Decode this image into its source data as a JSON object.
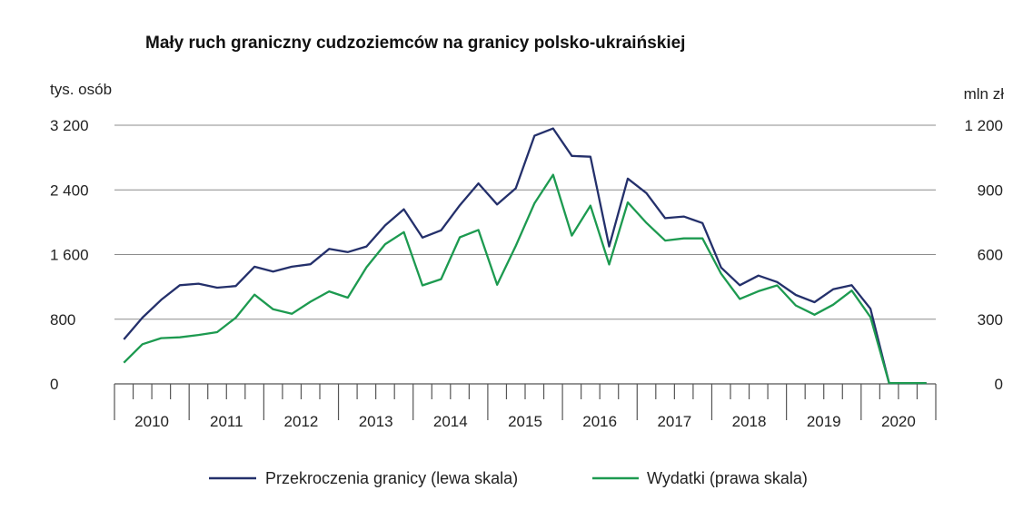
{
  "chart_data": {
    "type": "line",
    "title": "Mały ruch graniczny cudzoziemców na granicy polsko-ukraińskiej",
    "ylabel_left": "tys. osób",
    "ylabel_right": "mln zł",
    "ylim_left": [
      0,
      3200
    ],
    "ylim_right": [
      0,
      1200
    ],
    "yticks_left": [
      "0",
      "800",
      "1 600",
      "2 400",
      "3 200"
    ],
    "yticks_right": [
      "0",
      "300",
      "600",
      "900",
      "1 200"
    ],
    "grid": true,
    "legend_position": "bottom",
    "years": [
      "2010",
      "2011",
      "2012",
      "2013",
      "2014",
      "2015",
      "2016",
      "2017",
      "2018",
      "2019",
      "2020"
    ],
    "quarters_per_year": 4,
    "series": [
      {
        "name": "Przekroczenia granicy (lewa skala)",
        "axis": "left",
        "color": "#24306b",
        "values": [
          550,
          820,
          1040,
          1220,
          1240,
          1190,
          1210,
          1450,
          1390,
          1450,
          1480,
          1670,
          1630,
          1700,
          1960,
          2160,
          1810,
          1900,
          2210,
          2480,
          2220,
          2420,
          3070,
          3160,
          2820,
          2810,
          1700,
          2540,
          2360,
          2050,
          2070,
          1990,
          1440,
          1220,
          1340,
          1260,
          1100,
          1010,
          1170,
          1220,
          930,
          10,
          10,
          10
        ]
      },
      {
        "name": "Wydatki (prawa skala)",
        "axis": "right",
        "color": "#1d9a50",
        "values": [
          98,
          184,
          212,
          216,
          227,
          240,
          307,
          414,
          346,
          325,
          381,
          429,
          400,
          541,
          648,
          704,
          457,
          486,
          680,
          714,
          460,
          640,
          838,
          970,
          688,
          827,
          554,
          842,
          747,
          665,
          675,
          675,
          511,
          394,
          430,
          457,
          364,
          321,
          367,
          433,
          310,
          4,
          4,
          4
        ]
      }
    ]
  }
}
